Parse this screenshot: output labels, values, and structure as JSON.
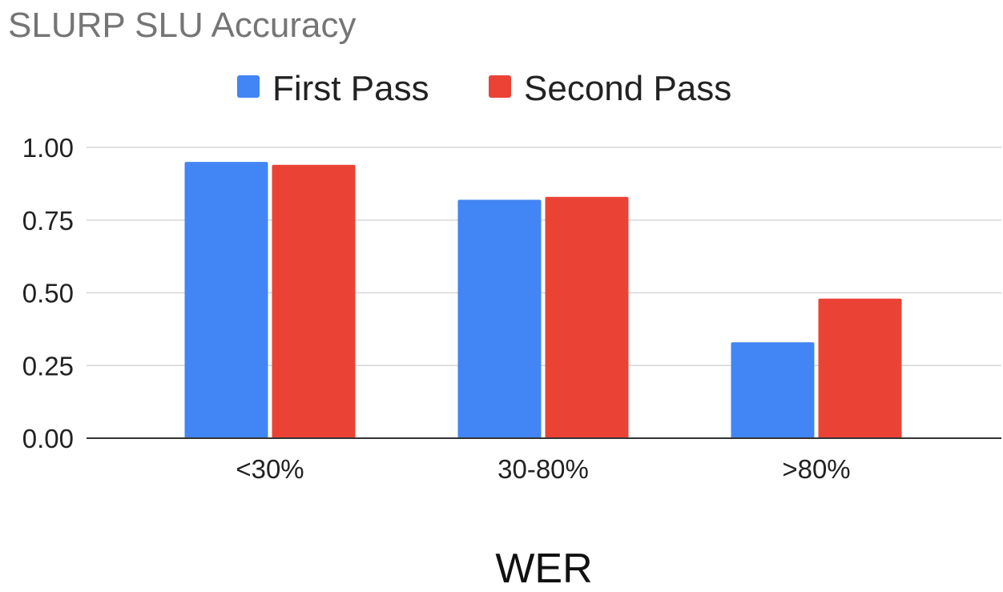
{
  "chart_data": {
    "type": "bar",
    "title": "SLURP SLU Accuracy",
    "xlabel": "WER",
    "ylabel": "",
    "categories": [
      "<30%",
      "30-80%",
      ">80%"
    ],
    "series": [
      {
        "name": "First Pass",
        "color": "#4285f4",
        "values": [
          0.95,
          0.82,
          0.33
        ]
      },
      {
        "name": "Second Pass",
        "color": "#ea4335",
        "values": [
          0.94,
          0.83,
          0.48
        ]
      }
    ],
    "ylim": [
      0,
      1
    ],
    "yticks": [
      "0.00",
      "0.25",
      "0.50",
      "0.75",
      "1.00"
    ],
    "grid": true,
    "legend_position": "top-center"
  }
}
